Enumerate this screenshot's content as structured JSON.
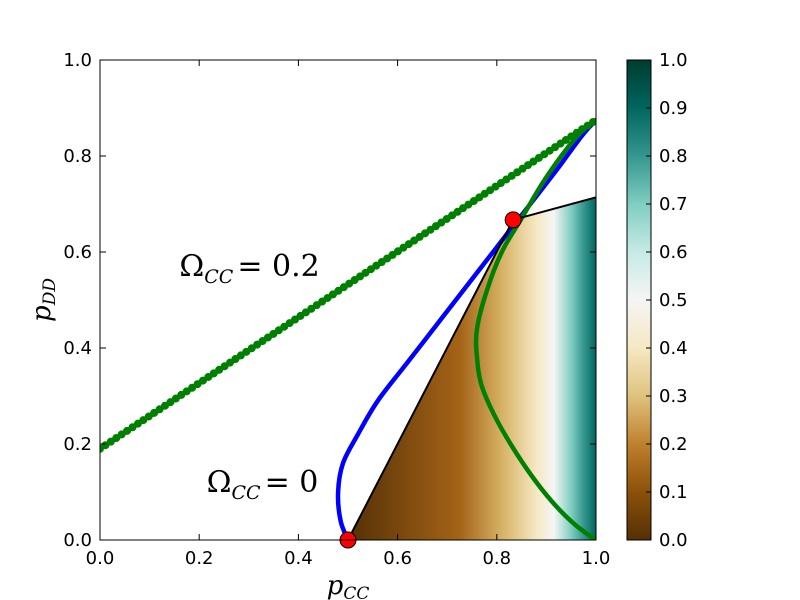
{
  "chart_data": {
    "type": "heatmap",
    "title": "",
    "xlabel": {
      "base": "p",
      "sub": "CC"
    },
    "ylabel": {
      "base": "p",
      "sub": "DD"
    },
    "xlim": [
      0.0,
      1.0
    ],
    "ylim": [
      0.0,
      1.0
    ],
    "x_ticks": [
      "0.0",
      "0.2",
      "0.4",
      "0.6",
      "0.8",
      "1.0"
    ],
    "y_ticks": [
      "0.0",
      "0.2",
      "0.4",
      "0.6",
      "0.8",
      "1.0"
    ],
    "grid": false,
    "heatmap": {
      "region_vertices": [
        [
          0.5,
          0.0
        ],
        [
          0.833,
          0.667
        ],
        [
          1.0,
          0.714
        ],
        [
          1.0,
          0.0
        ]
      ],
      "colormap": "BrBG",
      "colorbar_range": [
        0.0,
        1.0
      ],
      "colorbar_ticks": [
        "0.0",
        "0.1",
        "0.2",
        "0.3",
        "0.4",
        "0.5",
        "0.6",
        "0.7",
        "0.8",
        "0.9",
        "1.0"
      ]
    },
    "series": [
      {
        "style": "solid",
        "color": "#0000ff",
        "x": [
          0.5,
          0.485,
          0.48,
          0.49,
          0.52,
          0.56,
          0.62,
          0.68,
          0.74,
          0.8,
          0.86,
          0.92,
          0.97,
          1.0
        ],
        "y": [
          0.0,
          0.04,
          0.1,
          0.16,
          0.22,
          0.29,
          0.37,
          0.45,
          0.53,
          0.61,
          0.69,
          0.77,
          0.84,
          0.875
        ]
      },
      {
        "style": "solid",
        "color": "#008000",
        "x": [
          1.0,
          0.96,
          0.92,
          0.88,
          0.84,
          0.8,
          0.77,
          0.76,
          0.76,
          0.78,
          0.81,
          0.85,
          0.89,
          0.93,
          0.97,
          1.0
        ],
        "y": [
          0.0,
          0.03,
          0.07,
          0.12,
          0.18,
          0.25,
          0.32,
          0.38,
          0.44,
          0.52,
          0.6,
          0.67,
          0.74,
          0.8,
          0.85,
          0.875
        ]
      },
      {
        "style": "dotted-line",
        "color": "#008000",
        "x": [
          0.0,
          1.0
        ],
        "y": [
          0.19,
          0.875
        ]
      },
      {
        "style": "boundary",
        "color": "#000000",
        "x": [
          0.5,
          0.833,
          1.0
        ],
        "y": [
          0.0,
          0.667,
          0.714
        ]
      }
    ],
    "points": [
      {
        "x": 0.5,
        "y": 0.0,
        "color": "#ff0000"
      },
      {
        "x": 0.833,
        "y": 0.667,
        "color": "#ff0000"
      }
    ],
    "annotations": [
      {
        "label": "Ω",
        "sub": "CC",
        "eq": "= 0.2",
        "x": 0.16,
        "y": 0.55
      },
      {
        "label": "Ω",
        "sub": "CC",
        "eq": "= 0",
        "x": 0.215,
        "y": 0.1
      }
    ]
  }
}
